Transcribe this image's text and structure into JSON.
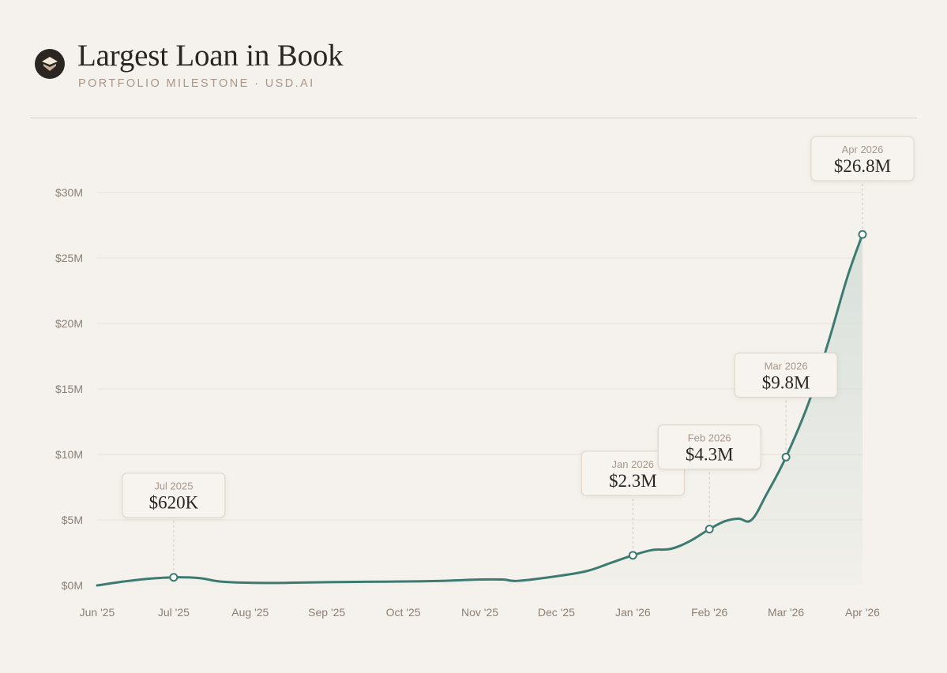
{
  "header": {
    "title": "Largest Loan in Book",
    "subtitle": "PORTFOLIO MILESTONE · USD.AI",
    "logo_icon": "usdai-logo-icon"
  },
  "colors": {
    "background": "#f5f2ed",
    "line": "#3d7a70",
    "area_top": "#d6dfd9",
    "grid": "#e7e1d9",
    "callout_bg": "#f7f3ee",
    "callout_border": "#dcd3c8"
  },
  "chart_data": {
    "type": "area",
    "title": "Largest Loan in Book",
    "xlabel": "",
    "ylabel": "",
    "x_ticks": [
      "Jun '25",
      "Jul '25",
      "Aug '25",
      "Sep '25",
      "Oct '25",
      "Nov '25",
      "Dec '25",
      "Jan '26",
      "Feb '26",
      "Mar '26",
      "Apr '26"
    ],
    "y_ticks": [
      "$0M",
      "$5M",
      "$10M",
      "$15M",
      "$20M",
      "$25M",
      "$30M"
    ],
    "ylim": [
      0,
      30
    ],
    "y_unit": "$M",
    "grid": true,
    "series": [
      {
        "name": "",
        "x": [
          0,
          0.35,
          0.65,
          1.0,
          1.35,
          1.6,
          2.0,
          2.5,
          3.0,
          3.5,
          4.0,
          4.5,
          5.0,
          5.3,
          5.5,
          6.0,
          6.4,
          6.7,
          7.0,
          7.25,
          7.5,
          7.75,
          8.0,
          8.2,
          8.38,
          8.55,
          8.75,
          9.0,
          9.3,
          9.55,
          9.8,
          10.0
        ],
        "values": [
          0.0,
          0.3,
          0.5,
          0.62,
          0.55,
          0.3,
          0.2,
          0.2,
          0.25,
          0.28,
          0.3,
          0.35,
          0.45,
          0.45,
          0.35,
          0.7,
          1.1,
          1.7,
          2.3,
          2.7,
          2.8,
          3.4,
          4.3,
          4.9,
          5.1,
          5.0,
          7.0,
          9.8,
          14.0,
          18.5,
          23.5,
          26.8
        ]
      }
    ],
    "milestones": [
      {
        "period": "Jul 2025",
        "value_label": "$620K",
        "x": 1,
        "y": 0.62
      },
      {
        "period": "Jan 2026",
        "value_label": "$2.3M",
        "x": 7,
        "y": 2.3
      },
      {
        "period": "Feb 2026",
        "value_label": "$4.3M",
        "x": 8,
        "y": 4.3
      },
      {
        "period": "Mar 2026",
        "value_label": "$9.8M",
        "x": 9,
        "y": 9.8
      },
      {
        "period": "Apr 2026",
        "value_label": "$26.8M",
        "x": 10,
        "y": 26.8
      }
    ]
  }
}
